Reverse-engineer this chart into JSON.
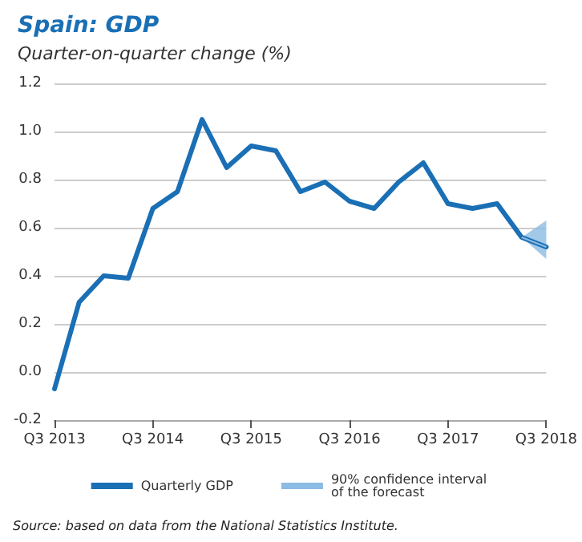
{
  "chart_data": {
    "type": "line",
    "title": "Spain: GDP",
    "subtitle": "Quarter-on-quarter change (%)",
    "categories": [
      "Q3 2013",
      null,
      null,
      null,
      "Q3 2014",
      null,
      null,
      null,
      "Q3 2015",
      null,
      null,
      null,
      "Q3 2016",
      null,
      null,
      null,
      "Q3 2017",
      null,
      null,
      null,
      "Q3 2018"
    ],
    "series": [
      {
        "name": "Quarterly GDP",
        "color": "#1a6fb5",
        "values": [
          -0.07,
          0.29,
          0.4,
          0.39,
          0.68,
          0.75,
          1.05,
          0.85,
          0.94,
          0.92,
          0.75,
          0.79,
          0.71,
          0.68,
          0.79,
          0.87,
          0.7,
          0.68,
          0.7,
          0.56,
          0.52
        ]
      },
      {
        "name": "90% confidence interval of the forecast",
        "type": "line",
        "color": "#8cbbe3",
        "values": [
          null,
          null,
          null,
          null,
          null,
          null,
          null,
          null,
          null,
          null,
          null,
          null,
          null,
          null,
          null,
          null,
          null,
          null,
          null,
          0.56,
          0.52
        ],
        "lower": [
          null,
          null,
          null,
          null,
          null,
          null,
          null,
          null,
          null,
          null,
          null,
          null,
          null,
          null,
          null,
          null,
          null,
          null,
          null,
          0.56,
          0.47
        ],
        "upper": [
          null,
          null,
          null,
          null,
          null,
          null,
          null,
          null,
          null,
          null,
          null,
          null,
          null,
          null,
          null,
          null,
          null,
          null,
          null,
          0.56,
          0.63
        ]
      }
    ],
    "ylim": [
      -0.2,
      1.2
    ],
    "yticks": [
      {
        "value": -0.2,
        "label": "-0.2"
      },
      {
        "value": 0,
        "label": "0.0"
      },
      {
        "value": 0.2,
        "label": "0.2"
      },
      {
        "value": 0.4,
        "label": "0.4"
      },
      {
        "value": 0.6,
        "label": "0.6"
      },
      {
        "value": 0.8,
        "label": "0.8"
      },
      {
        "value": 1,
        "label": "1.0"
      },
      {
        "value": 1.2,
        "label": "1.2"
      }
    ],
    "grid": "y",
    "legend": "bottom",
    "marker": "none",
    "line_style": "solid",
    "annotations": [
      "Source: based on data from the National Statistics Institute."
    ]
  }
}
